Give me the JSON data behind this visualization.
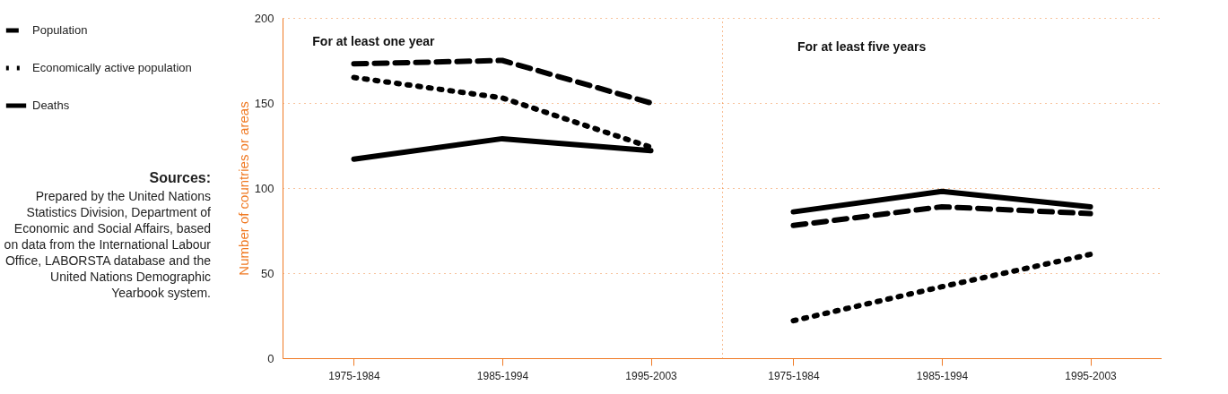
{
  "chart_data": [
    {
      "type": "line",
      "title": "For at least one year",
      "ylabel": "Number of countries or areas",
      "categories": [
        "1975-1984",
        "1985-1994",
        "1995-2003"
      ],
      "ylim": [
        0,
        200
      ],
      "yticks": [
        0,
        50,
        100,
        150,
        200
      ],
      "grid": "y",
      "legend": "left",
      "marker": "none",
      "series": [
        {
          "name": "Population",
          "color": "#000000",
          "line_style": "dashed",
          "values": [
            173,
            175,
            150
          ]
        },
        {
          "name": "Economically active population",
          "color": "#000000",
          "line_style": "dotted",
          "values": [
            165,
            153,
            124
          ]
        },
        {
          "name": "Deaths",
          "color": "#000000",
          "line_style": "solid",
          "values": [
            117,
            129,
            122
          ]
        }
      ],
      "annotations": [
        "Sources:",
        "Prepared by the United Nations Statistics Division, Department of Economic and Social Affairs, based on data from the International Labour Office, LABORSTA database and the United Nations Demographic Yearbook system."
      ]
    },
    {
      "type": "line",
      "title": "For at least five years",
      "categories": [
        "1975-1984",
        "1985-1994",
        "1995-2003"
      ],
      "ylim": [
        0,
        200
      ],
      "yticks": [
        0,
        50,
        100,
        150,
        200
      ],
      "grid": "y",
      "legend": false,
      "marker": "none",
      "tick_labels": "x",
      "series": [
        {
          "name": "Population",
          "color": "#000000",
          "line_style": "dashed",
          "values": [
            78,
            89,
            85
          ]
        },
        {
          "name": "Economically active population",
          "color": "#000000",
          "line_style": "dotted",
          "values": [
            22,
            42,
            61
          ]
        },
        {
          "name": "Deaths",
          "color": "#000000",
          "line_style": "solid",
          "values": [
            86,
            98,
            89
          ]
        }
      ]
    }
  ]
}
